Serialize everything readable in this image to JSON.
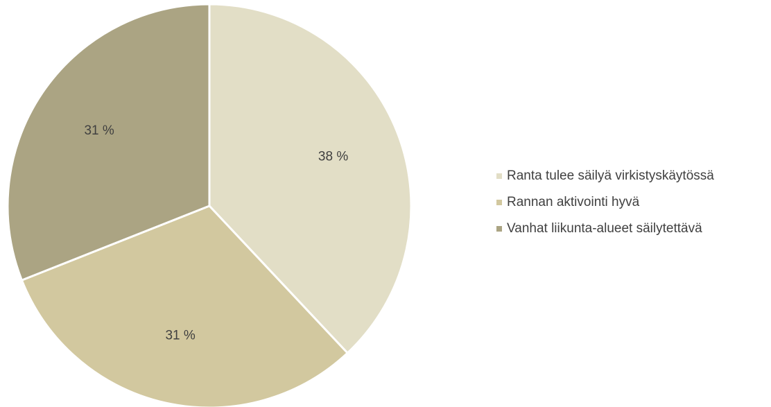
{
  "chart_data": {
    "type": "pie",
    "title": "",
    "legend_position": "right",
    "categories": [
      "Ranta tulee säilyä virkistyskäytössä",
      "Rannan aktivointi hyvä",
      "Vanhat liikunta-alueet säilytettävä"
    ],
    "values": [
      38,
      31,
      31
    ],
    "labels": [
      "38 %",
      "31 %",
      "31 %"
    ],
    "colors": [
      "#e2dec6",
      "#d2c89f",
      "#aba483"
    ]
  }
}
